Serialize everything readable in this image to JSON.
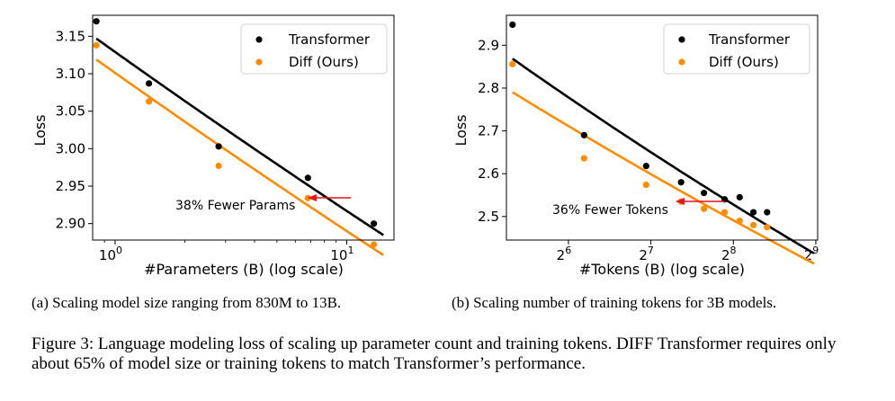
{
  "chart_data": [
    {
      "type": "scatter",
      "subcaption": "(a) Scaling model size ranging from 830M to 13B.",
      "xlabel": "#Parameters (B) (log scale)",
      "ylabel": "Loss",
      "x_scale": "log10",
      "xlim": [
        0.8,
        16
      ],
      "ylim": [
        2.878,
        3.178
      ],
      "yticks": [
        2.9,
        2.95,
        3.0,
        3.05,
        3.1,
        3.15
      ],
      "ytick_labels": [
        "2.90",
        "2.95",
        "3.00",
        "3.05",
        "3.10",
        "3.15"
      ],
      "xticks": [
        {
          "value": 1,
          "base": "10",
          "exp": "0"
        },
        {
          "value": 10,
          "base": "10",
          "exp": "1"
        }
      ],
      "legend_position": "top-right",
      "series": [
        {
          "name": "Transformer",
          "color": "#000000",
          "points": [
            [
              0.83,
              3.17
            ],
            [
              1.4,
              3.087
            ],
            [
              2.8,
              3.003
            ],
            [
              6.8,
              2.961
            ],
            [
              13.1,
              2.9
            ]
          ]
        },
        {
          "name": "Diff (Ours)",
          "color": "#ff8c00",
          "points": [
            [
              0.83,
              3.138
            ],
            [
              1.4,
              3.063
            ],
            [
              2.8,
              2.977
            ],
            [
              6.8,
              2.934
            ],
            [
              13.1,
              2.872
            ]
          ]
        }
      ],
      "annotation": {
        "text": "38% Fewer Params",
        "color": "#e8141a"
      }
    },
    {
      "type": "scatter",
      "subcaption": "(b) Scaling number of training tokens for 3B models.",
      "xlabel": "#Tokens (B) (log scale)",
      "ylabel": "Loss",
      "x_scale": "log2",
      "xlim": [
        38,
        520
      ],
      "ylim": [
        2.445,
        2.97
      ],
      "yticks": [
        2.5,
        2.6,
        2.7,
        2.8,
        2.9
      ],
      "ytick_labels": [
        "2.5",
        "2.6",
        "2.7",
        "2.8",
        "2.9"
      ],
      "xticks": [
        {
          "value": 64,
          "base": "2",
          "exp": "6"
        },
        {
          "value": 128,
          "base": "2",
          "exp": "7"
        },
        {
          "value": 256,
          "base": "2",
          "exp": "8"
        },
        {
          "value": 512,
          "base": "2",
          "exp": "9"
        }
      ],
      "legend_position": "top-right",
      "series": [
        {
          "name": "Transformer",
          "color": "#000000",
          "points": [
            [
              40,
              2.948
            ],
            [
              73,
              2.69
            ],
            [
              123,
              2.618
            ],
            [
              165,
              2.58
            ],
            [
              200,
              2.555
            ],
            [
              238,
              2.54
            ],
            [
              270,
              2.545
            ],
            [
              303,
              2.51
            ],
            [
              340,
              2.51
            ]
          ]
        },
        {
          "name": "Diff (Ours)",
          "color": "#ff8c00",
          "points": [
            [
              40,
              2.856
            ],
            [
              73,
              2.636
            ],
            [
              123,
              2.574
            ],
            [
              165,
              2.535
            ],
            [
              200,
              2.518
            ],
            [
              238,
              2.51
            ],
            [
              270,
              2.49
            ],
            [
              303,
              2.48
            ],
            [
              340,
              2.475
            ]
          ]
        }
      ],
      "annotation": {
        "text": "36% Fewer Tokens",
        "color": "#e8141a"
      }
    }
  ],
  "figure_caption": {
    "lead": "Figure 3: Language modeling loss of scaling up parameter count and training tokens. ",
    "name_first": "D",
    "name_rest": "IFF",
    "rest": " Transformer requires only about 65% of model size or training tokens to match Transformer’s performance."
  }
}
